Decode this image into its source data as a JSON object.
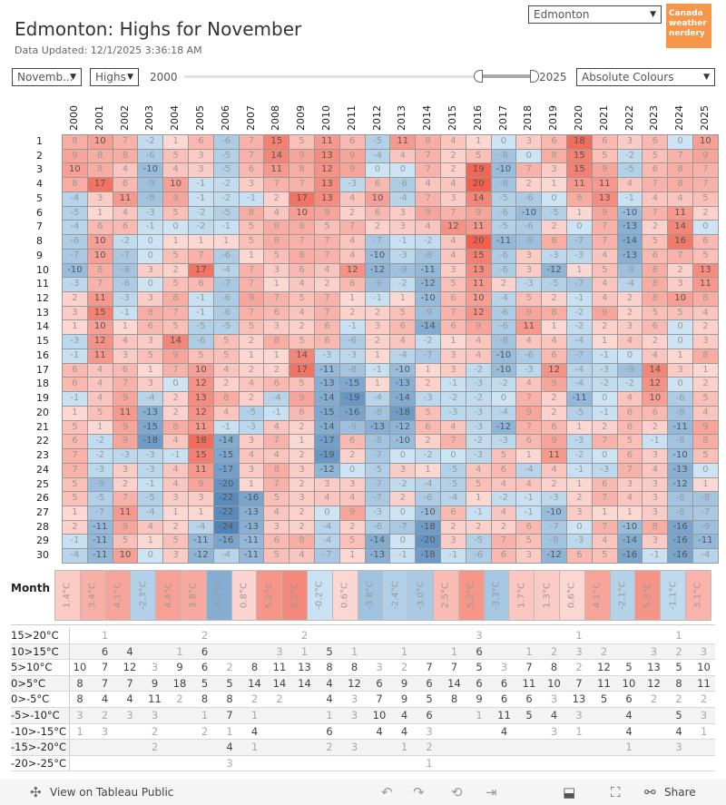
{
  "header": {
    "title": "Edmonton: Highs for November",
    "updated": "Data Updated: 12/1/2025 3:36:18 AM"
  },
  "controls": {
    "month": "Novemb...",
    "measure": "Highs",
    "slider_min": "2000",
    "slider_max": "2025",
    "city": "Edmonton",
    "colour_mode": "Absolute Colours"
  },
  "logo": {
    "text": "Canada weather nerdery",
    "color": "#f7964a"
  },
  "footer": {
    "view_on": "View on Tableau Public",
    "share": "Share"
  },
  "chart_data": {
    "type": "heatmap",
    "title": "Edmonton: Highs for November",
    "colors": {
      "warm": "#f0604d",
      "cold": "#4f84b8"
    },
    "years": [
      "2000",
      "2001",
      "2002",
      "2003",
      "2004",
      "2005",
      "2006",
      "2007",
      "2008",
      "2009",
      "2010",
      "2011",
      "2012",
      "2013",
      "2014",
      "2015",
      "2016",
      "2017",
      "2018",
      "2019",
      "2020",
      "2021",
      "2022",
      "2023",
      "2024",
      "2025"
    ],
    "days": [
      "1",
      "2",
      "3",
      "4",
      "5",
      "6",
      "7",
      "8",
      "9",
      "10",
      "11",
      "12",
      "13",
      "14",
      "15",
      "16",
      "17",
      "18",
      "19",
      "20",
      "21",
      "22",
      "23",
      "24",
      "25",
      "26",
      "27",
      "28",
      "29",
      "30"
    ],
    "values": [
      [
        8,
        10,
        7,
        -2,
        1,
        6,
        -6,
        7,
        15,
        5,
        11,
        6,
        -5,
        11,
        8,
        4,
        1,
        0,
        3,
        6,
        18,
        6,
        3,
        6,
        0,
        10
      ],
      [
        9,
        8,
        8,
        -6,
        5,
        3,
        -5,
        7,
        14,
        9,
        13,
        9,
        -4,
        4,
        7,
        2,
        5,
        -8,
        0,
        8,
        15,
        5,
        -2,
        5,
        7,
        9
      ],
      [
        10,
        8,
        4,
        -10,
        4,
        3,
        -5,
        6,
        11,
        8,
        12,
        9,
        0,
        0,
        7,
        2,
        19,
        -10,
        7,
        3,
        15,
        9,
        -5,
        6,
        8,
        7
      ],
      [
        8,
        17,
        6,
        -9,
        10,
        -1,
        -2,
        3,
        7,
        7,
        13,
        -3,
        6,
        -6,
        4,
        4,
        20,
        -8,
        2,
        1,
        11,
        11,
        4,
        7,
        8,
        7
      ],
      [
        -4,
        3,
        11,
        -8,
        9,
        -1,
        -2,
        -1,
        2,
        17,
        13,
        4,
        10,
        -4,
        7,
        3,
        14,
        -5,
        -6,
        0,
        8,
        13,
        -1,
        4,
        4,
        5
      ],
      [
        -5,
        1,
        4,
        -3,
        5,
        -2,
        -5,
        8,
        4,
        10,
        9,
        2,
        6,
        3,
        9,
        7,
        9,
        -6,
        -10,
        -5,
        1,
        9,
        -10,
        7,
        11,
        2
      ],
      [
        -4,
        6,
        6,
        -1,
        0,
        -2,
        -1,
        5,
        8,
        8,
        5,
        7,
        2,
        3,
        4,
        12,
        11,
        -5,
        -6,
        2,
        0,
        7,
        -13,
        2,
        14,
        0
      ],
      [
        -6,
        10,
        -2,
        0,
        1,
        1,
        1,
        5,
        8,
        7,
        7,
        4,
        -7,
        -1,
        -2,
        4,
        20,
        -11,
        -9,
        8,
        -7,
        7,
        -14,
        5,
        16,
        6
      ],
      [
        -7,
        10,
        -7,
        0,
        5,
        7,
        -6,
        1,
        5,
        8,
        7,
        4,
        -10,
        -3,
        -8,
        4,
        15,
        -6,
        3,
        -3,
        -3,
        4,
        -13,
        6,
        7,
        5
      ],
      [
        -10,
        8,
        -8,
        3,
        2,
        17,
        -4,
        7,
        3,
        6,
        4,
        12,
        -12,
        -9,
        -11,
        3,
        13,
        -6,
        3,
        -12,
        1,
        5,
        -9,
        8,
        2,
        13
      ],
      [
        -3,
        7,
        -6,
        0,
        5,
        6,
        -7,
        7,
        1,
        4,
        2,
        6,
        -9,
        -2,
        -12,
        5,
        11,
        2,
        -3,
        -5,
        -7,
        4,
        -4,
        8,
        3,
        11
      ],
      [
        2,
        11,
        -3,
        3,
        8,
        -1,
        -6,
        9,
        7,
        5,
        7,
        1,
        -1,
        1,
        -10,
        6,
        10,
        -4,
        5,
        2,
        -1,
        4,
        2,
        8,
        10,
        8
      ],
      [
        3,
        15,
        -1,
        8,
        7,
        -1,
        -6,
        7,
        6,
        4,
        7,
        2,
        2,
        5,
        -9,
        7,
        12,
        -6,
        9,
        8,
        -2,
        9,
        2,
        5,
        5,
        4
      ],
      [
        1,
        10,
        1,
        6,
        5,
        -5,
        -5,
        5,
        3,
        2,
        6,
        -1,
        3,
        6,
        -14,
        6,
        9,
        -6,
        11,
        1,
        -2,
        2,
        3,
        6,
        0,
        2
      ],
      [
        -3,
        12,
        4,
        3,
        14,
        -6,
        5,
        2,
        8,
        5,
        6,
        -6,
        2,
        4,
        -2,
        1,
        4,
        -8,
        4,
        4,
        -4,
        1,
        4,
        2,
        0,
        3
      ],
      [
        -1,
        11,
        3,
        5,
        9,
        5,
        5,
        1,
        1,
        14,
        -3,
        -3,
        1,
        -4,
        -7,
        3,
        4,
        -10,
        -6,
        6,
        -7,
        -1,
        0,
        4,
        1,
        8
      ],
      [
        6,
        4,
        6,
        1,
        7,
        10,
        4,
        2,
        2,
        17,
        -11,
        -8,
        -1,
        -10,
        1,
        3,
        -2,
        -10,
        -3,
        12,
        -4,
        -3,
        -9,
        14,
        3,
        1
      ],
      [
        6,
        4,
        7,
        3,
        0,
        12,
        2,
        4,
        6,
        5,
        -13,
        -15,
        1,
        -13,
        2,
        -1,
        -3,
        -2,
        4,
        9,
        -4,
        -2,
        -2,
        12,
        0,
        2
      ],
      [
        -1,
        4,
        9,
        -4,
        2,
        13,
        8,
        2,
        -4,
        9,
        -14,
        -19,
        -4,
        -14,
        -3,
        -2,
        -2,
        0,
        7,
        2,
        -11,
        0,
        4,
        10,
        -6,
        5
      ],
      [
        1,
        5,
        11,
        -13,
        2,
        12,
        4,
        -5,
        -1,
        6,
        -15,
        -16,
        -8,
        -18,
        5,
        -3,
        -3,
        -4,
        9,
        2,
        -5,
        -1,
        6,
        6,
        -8,
        4
      ],
      [
        5,
        1,
        9,
        -15,
        8,
        11,
        -1,
        -3,
        4,
        2,
        -14,
        -9,
        -13,
        -12,
        6,
        4,
        -3,
        -12,
        7,
        6,
        1,
        2,
        6,
        2,
        -11,
        9
      ],
      [
        6,
        -2,
        9,
        -18,
        4,
        18,
        -14,
        3,
        7,
        1,
        -17,
        6,
        -8,
        -10,
        2,
        7,
        -2,
        -3,
        6,
        9,
        -3,
        7,
        5,
        -1,
        -8,
        8
      ],
      [
        7,
        -2,
        -3,
        -3,
        -1,
        15,
        -15,
        4,
        4,
        2,
        -19,
        2,
        -7,
        0,
        -2,
        0,
        -3,
        5,
        1,
        11,
        -2,
        0,
        6,
        3,
        -10,
        5
      ],
      [
        7,
        -3,
        3,
        -3,
        4,
        11,
        -17,
        3,
        8,
        3,
        -12,
        0,
        -5,
        3,
        1,
        -5,
        4,
        6,
        -4,
        4,
        -1,
        -3,
        7,
        4,
        -13,
        0
      ],
      [
        5,
        -9,
        2,
        -1,
        4,
        9,
        -20,
        1,
        7,
        2,
        3,
        3,
        -7,
        -2,
        -4,
        -5,
        5,
        4,
        4,
        2,
        1,
        6,
        3,
        3,
        -12,
        1
      ],
      [
        5,
        -5,
        7,
        -5,
        3,
        3,
        -22,
        -16,
        5,
        3,
        4,
        4,
        -7,
        2,
        -6,
        -4,
        1,
        -2,
        -1,
        -3,
        2,
        7,
        4,
        3,
        -8,
        -8
      ],
      [
        1,
        -7,
        11,
        -4,
        1,
        1,
        -22,
        -13,
        4,
        2,
        0,
        9,
        -3,
        0,
        -10,
        6,
        -1,
        4,
        -1,
        -10,
        3,
        1,
        1,
        3,
        -8,
        -7
      ],
      [
        2,
        -11,
        9,
        4,
        2,
        -4,
        -24,
        -13,
        3,
        2,
        -4,
        2,
        -6,
        -7,
        -18,
        2,
        2,
        2,
        6,
        -7,
        0,
        7,
        -10,
        8,
        -16,
        -9
      ],
      [
        -1,
        -11,
        5,
        1,
        5,
        -11,
        -16,
        -11,
        6,
        8,
        -4,
        5,
        -14,
        0,
        -20,
        3,
        -5,
        7,
        5,
        -8,
        -3,
        4,
        -14,
        3,
        -16,
        -11
      ],
      [
        -4,
        -11,
        10,
        0,
        3,
        -12,
        -4,
        -11,
        5,
        4,
        -7,
        1,
        -13,
        -1,
        -18,
        -1,
        -6,
        6,
        3,
        -12,
        6,
        5,
        -16,
        -1,
        -16,
        -4
      ]
    ],
    "month_average_label": "Month Average",
    "month_averages": [
      "1.4°C",
      "3.4°C",
      "4.1°C",
      "-2.3°C",
      "4.4°C",
      "3.8°C",
      "-6.2°C",
      "0.8°C",
      "5.2°C",
      "6.2°C",
      "-0.2°C",
      "0.6°C",
      "-3.8°C",
      "-2.4°C",
      "-3.0°C",
      "2.5°C",
      "5.2°C",
      "-3.3°C",
      "1.7°C",
      "1.3°C",
      "0.6°C",
      "4.1°C",
      "-2.1°C",
      "5.3°C",
      "-1.1°C",
      "3.1°C"
    ],
    "month_average_values": [
      1.4,
      3.4,
      4.1,
      -2.3,
      4.4,
      3.8,
      -6.2,
      0.8,
      5.2,
      6.2,
      -0.2,
      0.6,
      -3.8,
      -2.4,
      -3.0,
      2.5,
      5.2,
      -3.3,
      1.7,
      1.3,
      0.6,
      4.1,
      -2.1,
      5.3,
      -1.1,
      3.1
    ],
    "bins": [
      {
        "label": "15>20°C",
        "counts": [
          null,
          1,
          null,
          null,
          null,
          2,
          null,
          null,
          null,
          2,
          null,
          null,
          null,
          null,
          null,
          null,
          3,
          null,
          null,
          null,
          1,
          null,
          null,
          null,
          1,
          null
        ]
      },
      {
        "label": "10>15°C",
        "counts": [
          null,
          6,
          4,
          null,
          1,
          6,
          null,
          null,
          3,
          1,
          5,
          1,
          null,
          1,
          null,
          1,
          6,
          null,
          1,
          2,
          3,
          2,
          null,
          3,
          2,
          3
        ]
      },
      {
        "label": "5>10°C",
        "counts": [
          10,
          7,
          12,
          3,
          9,
          6,
          2,
          8,
          11,
          13,
          8,
          8,
          3,
          2,
          7,
          7,
          5,
          3,
          7,
          8,
          2,
          12,
          5,
          13,
          5,
          10
        ]
      },
      {
        "label": "0>5°C",
        "counts": [
          8,
          7,
          7,
          9,
          18,
          5,
          5,
          14,
          14,
          14,
          4,
          12,
          6,
          9,
          6,
          14,
          6,
          6,
          11,
          10,
          7,
          11,
          10,
          12,
          8,
          11
        ]
      },
      {
        "label": "0>-5°C",
        "counts": [
          8,
          4,
          4,
          11,
          2,
          8,
          8,
          2,
          2,
          null,
          4,
          3,
          7,
          9,
          5,
          8,
          9,
          6,
          6,
          3,
          13,
          5,
          6,
          2,
          2,
          2
        ]
      },
      {
        "label": "-5>-10°C",
        "counts": [
          3,
          2,
          3,
          3,
          null,
          1,
          7,
          1,
          null,
          null,
          1,
          3,
          10,
          4,
          6,
          null,
          1,
          11,
          5,
          4,
          3,
          null,
          4,
          null,
          5,
          3
        ]
      },
      {
        "label": "-10>-15°C",
        "counts": [
          1,
          3,
          null,
          2,
          null,
          2,
          1,
          4,
          null,
          null,
          6,
          null,
          4,
          4,
          3,
          null,
          null,
          4,
          null,
          3,
          1,
          null,
          4,
          null,
          4,
          1
        ]
      },
      {
        "label": "-15>-20°C",
        "counts": [
          null,
          null,
          null,
          2,
          null,
          null,
          4,
          1,
          null,
          null,
          2,
          3,
          null,
          1,
          2,
          null,
          null,
          null,
          null,
          null,
          null,
          null,
          1,
          null,
          3,
          null
        ]
      },
      {
        "label": "-20>-25°C",
        "counts": [
          null,
          null,
          null,
          null,
          null,
          null,
          3,
          null,
          null,
          null,
          null,
          null,
          null,
          null,
          1,
          null,
          null,
          null,
          null,
          null,
          null,
          null,
          null,
          null,
          null,
          null
        ]
      }
    ]
  }
}
